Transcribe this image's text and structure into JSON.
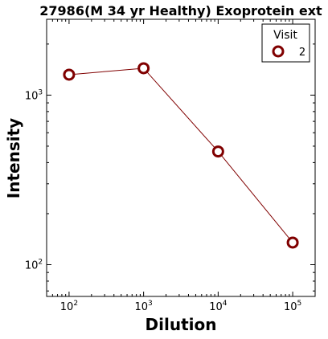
{
  "chart_data": {
    "type": "line",
    "title": "27986(M 34 yr Healthy) Exoprotein ext",
    "xlabel": "Dilution",
    "ylabel": "Intensity",
    "x_scale": "log",
    "y_scale": "log",
    "xlim": [
      50,
      200000
    ],
    "ylim": [
      65,
      2800
    ],
    "x_ticks": [
      {
        "value": 100,
        "base": "10",
        "exp": "2"
      },
      {
        "value": 1000,
        "base": "10",
        "exp": "3"
      },
      {
        "value": 10000,
        "base": "10",
        "exp": "4"
      },
      {
        "value": 100000,
        "base": "10",
        "exp": "5"
      }
    ],
    "y_ticks": [
      {
        "value": 100,
        "base": "10",
        "exp": "2"
      },
      {
        "value": 1000,
        "base": "10",
        "exp": "3"
      }
    ],
    "legend": {
      "title": "Visit",
      "position": "top-right"
    },
    "grid": false,
    "series": [
      {
        "name": "2",
        "color": "#800000",
        "marker": "open-circle",
        "x": [
          100,
          1000,
          10000,
          100000
        ],
        "y": [
          1320,
          1440,
          465,
          135
        ]
      }
    ]
  }
}
